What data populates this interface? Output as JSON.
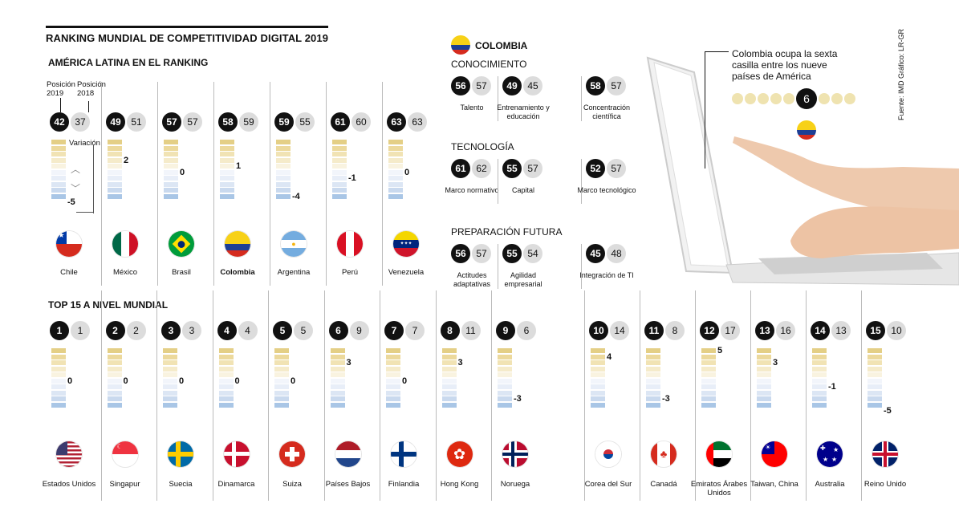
{
  "title": "RANKING MUNDIAL DE COMPETITIVIDAD DIGITAL 2019",
  "latam_heading": "AMÉRICA LATINA EN EL RANKING",
  "legend": {
    "pos2019": "Posición 2019",
    "pos2018": "Posición 2018",
    "variation": "Variación"
  },
  "latam": [
    {
      "name": "Chile",
      "r2019": "42",
      "r2018": "37",
      "var": "-5",
      "varNum": -5
    },
    {
      "name": "México",
      "r2019": "49",
      "r2018": "51",
      "var": "2",
      "varNum": 2
    },
    {
      "name": "Brasil",
      "r2019": "57",
      "r2018": "57",
      "var": "0",
      "varNum": 0
    },
    {
      "name": "Colombia",
      "r2019": "58",
      "r2018": "59",
      "var": "1",
      "varNum": 1
    },
    {
      "name": "Argentina",
      "r2019": "59",
      "r2018": "55",
      "var": "-4",
      "varNum": -4
    },
    {
      "name": "Perú",
      "r2019": "61",
      "r2018": "60",
      "var": "-1",
      "varNum": -1
    },
    {
      "name": "Venezuela",
      "r2019": "63",
      "r2018": "63",
      "var": "0",
      "varNum": 0
    }
  ],
  "colombia": {
    "heading": "COLOMBIA",
    "groups": [
      {
        "title": "CONOCIMIENTO",
        "items": [
          {
            "label": "Talento",
            "r2019": "56",
            "r2018": "57"
          },
          {
            "label": "Entrenamiento y educación",
            "r2019": "49",
            "r2018": "45"
          },
          {
            "label": "Concentración científica",
            "r2019": "58",
            "r2018": "57"
          }
        ]
      },
      {
        "title": "TECNOLOGÍA",
        "items": [
          {
            "label": "Marco normativo",
            "r2019": "61",
            "r2018": "62"
          },
          {
            "label": "Capital",
            "r2019": "55",
            "r2018": "57"
          },
          {
            "label": "Marco tecnológico",
            "r2019": "52",
            "r2018": "57"
          }
        ]
      },
      {
        "title": "PREPARACIÓN FUTURA",
        "items": [
          {
            "label": "Actitudes adaptativas",
            "r2019": "56",
            "r2018": "57"
          },
          {
            "label": "Agilidad empresarial",
            "r2019": "55",
            "r2018": "54"
          },
          {
            "label": "Integración de TI",
            "r2019": "45",
            "r2018": "48"
          }
        ]
      }
    ]
  },
  "callout": {
    "text": "Colombia ocupa la sexta casilla entre los nueve países de América",
    "position": "6"
  },
  "source": "Fuente: IMD  Gráfico: LR-GR",
  "top_heading": "TOP 15 A NIVEL MUNDIAL",
  "top15": [
    {
      "name": "Estados Unidos",
      "r2019": "1",
      "r2018": "1",
      "var": "0",
      "varNum": 0
    },
    {
      "name": "Singapur",
      "r2019": "2",
      "r2018": "2",
      "var": "0",
      "varNum": 0
    },
    {
      "name": "Suecia",
      "r2019": "3",
      "r2018": "3",
      "var": "0",
      "varNum": 0
    },
    {
      "name": "Dinamarca",
      "r2019": "4",
      "r2018": "4",
      "var": "0",
      "varNum": 0
    },
    {
      "name": "Suiza",
      "r2019": "5",
      "r2018": "5",
      "var": "0",
      "varNum": 0
    },
    {
      "name": "Países Bajos",
      "r2019": "6",
      "r2018": "9",
      "var": "3",
      "varNum": 3
    },
    {
      "name": "Finlandia",
      "r2019": "7",
      "r2018": "7",
      "var": "0",
      "varNum": 0
    },
    {
      "name": "Hong Kong",
      "r2019": "8",
      "r2018": "11",
      "var": "3",
      "varNum": 3
    },
    {
      "name": "Noruega",
      "r2019": "9",
      "r2018": "6",
      "var": "-3",
      "varNum": -3
    },
    {
      "name": "Corea del Sur",
      "r2019": "10",
      "r2018": "14",
      "var": "4",
      "varNum": 4
    },
    {
      "name": "Canadá",
      "r2019": "11",
      "r2018": "8",
      "var": "-3",
      "varNum": -3
    },
    {
      "name": "Emiratos Árabes Unidos",
      "r2019": "12",
      "r2018": "17",
      "var": "5",
      "varNum": 5
    },
    {
      "name": "Taiwan, China",
      "r2019": "13",
      "r2018": "16",
      "var": "3",
      "varNum": 3
    },
    {
      "name": "Australia",
      "r2019": "14",
      "r2018": "13",
      "var": "-1",
      "varNum": -1
    },
    {
      "name": "Reino Unido",
      "r2019": "15",
      "r2018": "10",
      "var": "-5",
      "varNum": -5
    }
  ],
  "colors": {
    "up": "#e4cf86",
    "down": "#a9c6e6",
    "black": "#111111",
    "grey": "#dcdcdc"
  }
}
